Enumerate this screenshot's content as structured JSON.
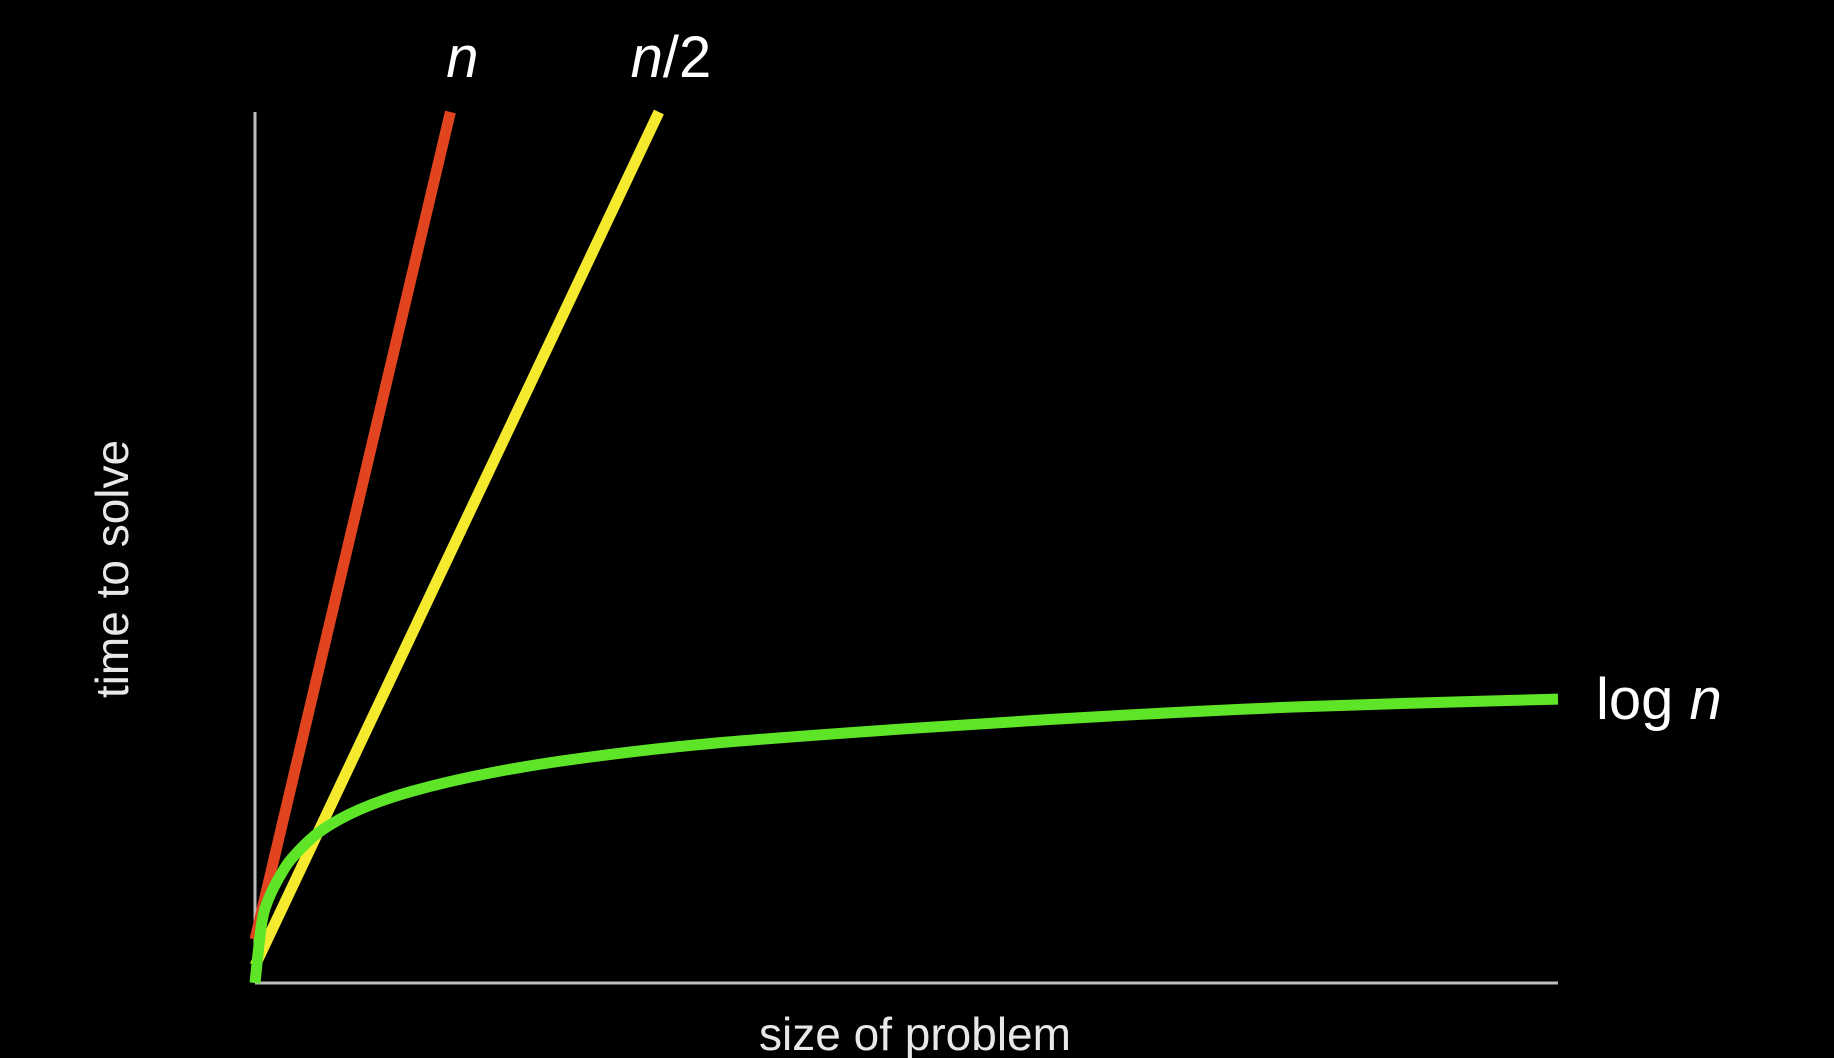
{
  "chart_data": {
    "type": "line",
    "title": "",
    "xlabel": "size of problem",
    "ylabel": "time to solve",
    "xlim": [
      0,
      100
    ],
    "ylim": [
      0,
      100
    ],
    "grid": false,
    "legend": "labels at line ends",
    "series": [
      {
        "name": "n",
        "label_parts": [
          {
            "text": "n",
            "italic": true
          }
        ],
        "color": "#e2441f",
        "label_anchor": "end-top",
        "x": [
          0,
          15
        ],
        "y": [
          5,
          100
        ]
      },
      {
        "name": "n/2",
        "label_parts": [
          {
            "text": "n",
            "italic": true
          },
          {
            "text": "/2",
            "italic": false
          }
        ],
        "color": "#f5ea2e",
        "label_anchor": "end-top",
        "x": [
          0,
          31
        ],
        "y": [
          2,
          100
        ]
      },
      {
        "name": "log n",
        "label_parts": [
          {
            "text": "log ",
            "italic": false
          },
          {
            "text": "n",
            "italic": true
          }
        ],
        "color": "#5ee528",
        "label_anchor": "end-right",
        "x": [
          0,
          0.5,
          1,
          2,
          3,
          5,
          8,
          12,
          18,
          25,
          35,
          50,
          65,
          80,
          100
        ],
        "y": [
          0,
          6.7,
          9.5,
          12.5,
          14.6,
          17.4,
          19.9,
          22.0,
          24.1,
          25.8,
          27.5,
          29.2,
          30.6,
          31.7,
          32.6
        ]
      }
    ]
  }
}
